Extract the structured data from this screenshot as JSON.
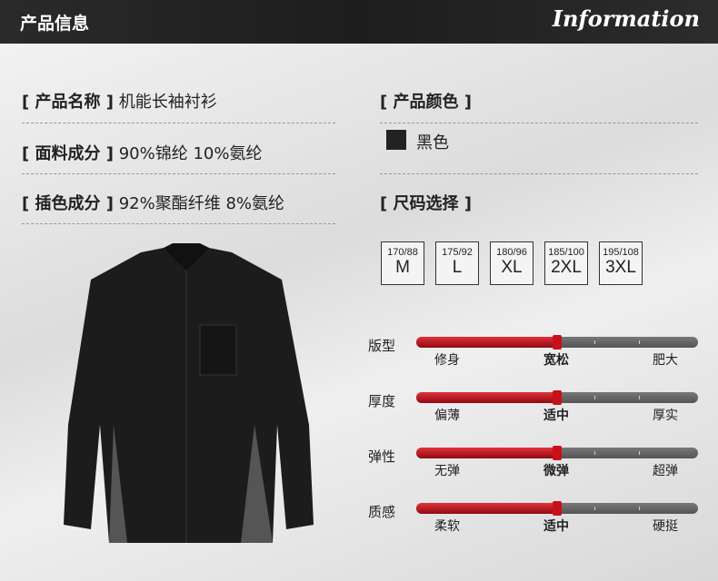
{
  "header": {
    "title": "产品信息",
    "english": "Information"
  },
  "specs": [
    {
      "label": "[ 产品名称 ]",
      "value": "机能长袖衬衫"
    },
    {
      "label": "[ 面料成分 ]",
      "value": "90%锦纶 10%氨纶"
    },
    {
      "label": "[ 插色成分 ]",
      "value": "92%聚酯纤维 8%氨纶"
    }
  ],
  "color": {
    "label": "[ 产品颜色 ]",
    "value": "黑色",
    "swatch": "#222222"
  },
  "size": {
    "label": "[ 尺码选择 ]",
    "options": [
      {
        "spec": "170/88",
        "size": "M"
      },
      {
        "spec": "175/92",
        "size": "L"
      },
      {
        "spec": "180/96",
        "size": "XL"
      },
      {
        "spec": "185/100",
        "size": "2XL"
      },
      {
        "spec": "195/108",
        "size": "3XL"
      }
    ]
  },
  "attributes": [
    {
      "name": "版型",
      "options": [
        "修身",
        "宽松",
        "肥大"
      ],
      "level": 0.5,
      "selected": "宽松"
    },
    {
      "name": "厚度",
      "options": [
        "偏薄",
        "适中",
        "厚实"
      ],
      "level": 0.5,
      "selected": "适中"
    },
    {
      "name": "弹性",
      "options": [
        "无弹",
        "微弹",
        "超弹"
      ],
      "level": 0.5,
      "selected": "微弹"
    },
    {
      "name": "质感",
      "options": [
        "柔软",
        "适中",
        "硬挺"
      ],
      "level": 0.5,
      "selected": "适中"
    }
  ],
  "accent": "#c8101a"
}
